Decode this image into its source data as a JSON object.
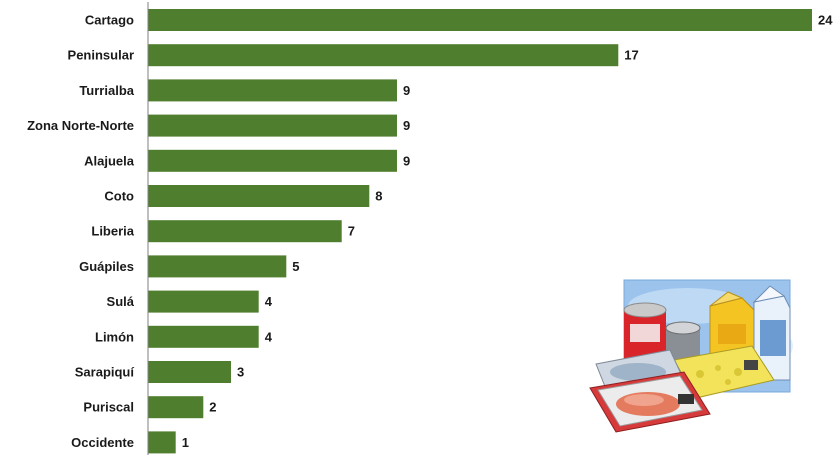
{
  "chart_data": {
    "type": "bar",
    "orientation": "horizontal",
    "categories": [
      "Cartago",
      "Peninsular",
      "Turrialba",
      "Zona Norte-Norte",
      "Alajuela",
      "Coto",
      "Liberia",
      "Guápiles",
      "Sulá",
      "Limón",
      "Sarapiquí",
      "Puriscal",
      "Occidente"
    ],
    "values": [
      24,
      17,
      9,
      9,
      9,
      8,
      7,
      5,
      4,
      4,
      3,
      2,
      1
    ],
    "xlim": [
      0,
      24
    ],
    "grid": false,
    "legend": "none",
    "bar_color": "#4f7f2e",
    "data_labels": true
  },
  "illustration": {
    "icon": "packaged-food-clipart-icon"
  }
}
